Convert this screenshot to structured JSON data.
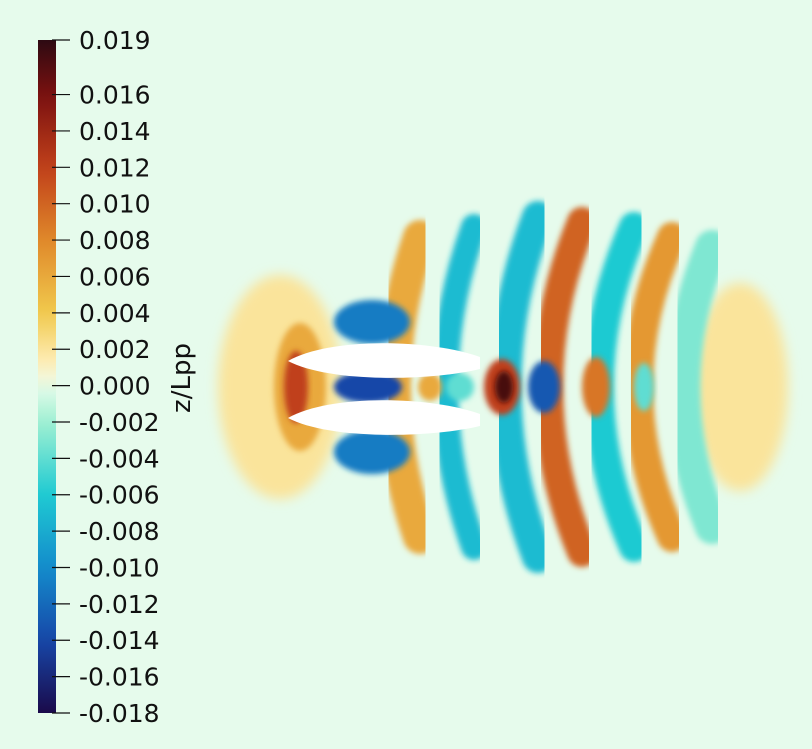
{
  "chart_data": {
    "type": "heatmap",
    "title": "",
    "colorbar": {
      "label": "z/Lpp",
      "range": [
        -0.018,
        0.019
      ],
      "placement": "left-vertical",
      "tick_labels": [
        "0.019",
        "0.016",
        "0.014",
        "0.012",
        "0.010",
        "0.008",
        "0.006",
        "0.004",
        "0.002",
        "0.000",
        "-0.002",
        "-0.004",
        "-0.006",
        "-0.008",
        "-0.010",
        "-0.012",
        "-0.014",
        "-0.016",
        "-0.018"
      ],
      "tick_values": [
        0.019,
        0.016,
        0.014,
        0.012,
        0.01,
        0.008,
        0.006,
        0.004,
        0.002,
        0.0,
        -0.002,
        -0.004,
        -0.006,
        -0.008,
        -0.01,
        -0.012,
        -0.014,
        -0.016,
        -0.018
      ],
      "stops": [
        {
          "value": 0.019,
          "color": "#2d0a12"
        },
        {
          "value": 0.016,
          "color": "#7a1010"
        },
        {
          "value": 0.012,
          "color": "#c0401a"
        },
        {
          "value": 0.008,
          "color": "#e0882a"
        },
        {
          "value": 0.004,
          "color": "#f1c94d"
        },
        {
          "value": 0.001,
          "color": "#fff1c2"
        },
        {
          "value": 0.0,
          "color": "#e6fbec"
        },
        {
          "value": -0.002,
          "color": "#9ff0d2"
        },
        {
          "value": -0.006,
          "color": "#1fcad2"
        },
        {
          "value": -0.01,
          "color": "#138ccc"
        },
        {
          "value": -0.014,
          "color": "#1747a8"
        },
        {
          "value": -0.018,
          "color": "#1a0a4a"
        }
      ]
    },
    "field": {
      "background_value": 0.0,
      "hull_count": 2,
      "features": [
        {
          "kind": "bow-crest",
          "value": 0.006
        },
        {
          "kind": "inner-trough",
          "value": -0.014
        },
        {
          "kind": "inner-crest",
          "value": 0.006
        },
        {
          "kind": "inner-crest-peak",
          "value": 0.018
        },
        {
          "kind": "inner-trough",
          "value": -0.013
        },
        {
          "kind": "inner-crest",
          "value": 0.009
        },
        {
          "kind": "inner-trough",
          "value": -0.004
        },
        {
          "kind": "outer-trough",
          "value": -0.011
        },
        {
          "kind": "outer-crest",
          "value": 0.006
        },
        {
          "kind": "outer-trough",
          "value": -0.007
        },
        {
          "kind": "outer-crest",
          "value": 0.01
        },
        {
          "kind": "outer-trough",
          "value": -0.006
        },
        {
          "kind": "outer-crest",
          "value": 0.007
        },
        {
          "kind": "outer-trough",
          "value": -0.003
        },
        {
          "kind": "outer-crest",
          "value": 0.002
        }
      ]
    }
  },
  "colors": {
    "background": "#e6fbec",
    "hull": "#ffffff"
  }
}
